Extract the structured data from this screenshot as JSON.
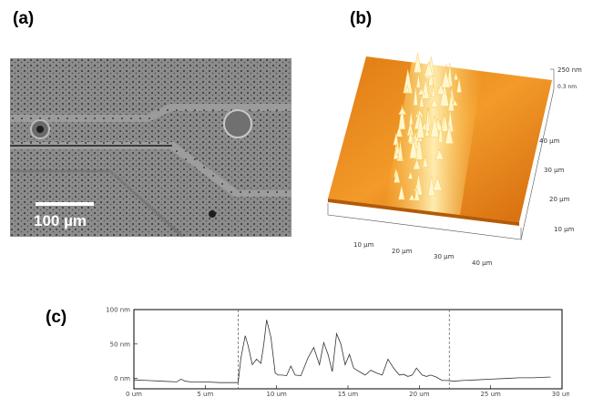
{
  "panels": {
    "a": {
      "label": "(a)",
      "scale_bar": "100 µm"
    },
    "b": {
      "label": "(b)",
      "z_max": "250 nm",
      "z_sub": "0.3 nm",
      "y_ticks": [
        "40 µm",
        "30 µm",
        "20 µm",
        "10 µm"
      ],
      "x_ticks": [
        "10 µm",
        "20 µm",
        "30 µm",
        "40 µm"
      ]
    },
    "c": {
      "label": "(c)",
      "y_ticks": [
        "100 nm",
        "50 nm",
        "0 nm"
      ],
      "x_ticks": [
        "0 um",
        "5 um",
        "10 um",
        "15 um",
        "20 um",
        "25 um",
        "30 um"
      ]
    }
  },
  "chart_data": {
    "type": "line",
    "title": "",
    "xlabel": "",
    "ylabel": "",
    "xlim": [
      0,
      30
    ],
    "ylim": [
      -15,
      100
    ],
    "markers_x": [
      7.3,
      22.1
    ],
    "series": [
      {
        "x": [
          0,
          1,
          2,
          3,
          3.3,
          3.6,
          4,
          5,
          6,
          7,
          7.3,
          7.5,
          7.8,
          8.0,
          8.3,
          8.6,
          8.9,
          9.1,
          9.3,
          9.6,
          9.9,
          10.1,
          10.4,
          10.7,
          11.0,
          11.3,
          11.7,
          12.2,
          12.6,
          13.0,
          13.3,
          13.6,
          13.9,
          14.2,
          14.5,
          14.8,
          15.1,
          15.4,
          15.8,
          16.2,
          16.6,
          17.0,
          17.4,
          17.8,
          18.2,
          18.6,
          18.9,
          19.2,
          19.5,
          19.8,
          20.2,
          20.5,
          20.8,
          21.2,
          21.6,
          22.0,
          22.4,
          23,
          24,
          25,
          26,
          27,
          28,
          29,
          29.2
        ],
        "y": [
          -2,
          -3,
          -4,
          -5,
          -1,
          -4,
          -5,
          -5,
          -6,
          -6,
          -6,
          30,
          62,
          48,
          20,
          28,
          22,
          50,
          85,
          60,
          8,
          5,
          5,
          4,
          18,
          5,
          4,
          30,
          45,
          20,
          52,
          35,
          10,
          65,
          50,
          20,
          35,
          15,
          10,
          5,
          12,
          8,
          5,
          28,
          15,
          5,
          6,
          3,
          5,
          15,
          5,
          3,
          5,
          2,
          -3,
          -3,
          -4,
          -3,
          -2,
          -1,
          0,
          1,
          1,
          2,
          2
        ]
      }
    ]
  }
}
